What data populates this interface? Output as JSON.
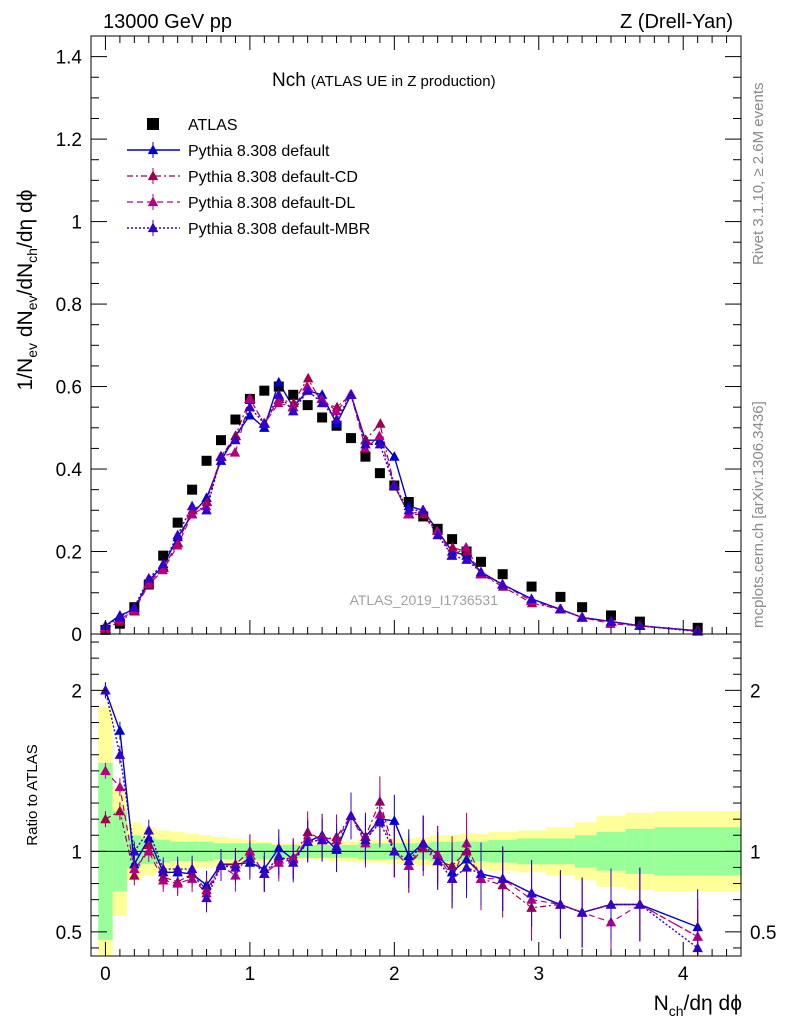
{
  "header": {
    "left": "13000 GeV pp",
    "right": "Z (Drell-Yan)"
  },
  "side": {
    "rivet": "Rivet 3.1.10, ≥ 2.6M events",
    "mcplots": "mcplots.cern.ch [arXiv:1306.3436]"
  },
  "watermark": "ATLAS_2019_I1736531",
  "colors": {
    "data": "#000000",
    "default": "#0000cc",
    "cd": "#a0004b",
    "dl": "#b40080",
    "mbr": "#3300cc",
    "band_inner": "#99ff99",
    "band_outer": "#ffff99"
  },
  "chart_data": {
    "type": "line",
    "title": "Nch",
    "subtitle": "(ATLAS UE in Z production)",
    "ylabel_main": "1/N_ev dN_ev/dN_ch/dη dφ",
    "ylabel_ratio": "Ratio to ATLAS",
    "xlabel": "N_ch/dη dφ",
    "xlim": [
      -0.1,
      4.4
    ],
    "ylim_main": [
      0,
      1.45
    ],
    "ylim_ratio": [
      0.35,
      2.35
    ],
    "xticks": [
      0,
      1,
      2,
      3,
      4
    ],
    "yticks_main": [
      0,
      0.2,
      0.4,
      0.6,
      0.8,
      1,
      1.2,
      1.4
    ],
    "ytick_labels_main": [
      "0",
      "0.2",
      "0.4",
      "0.6",
      "0.8",
      "1",
      "1.2",
      "1.4"
    ],
    "yticks_ratio": [
      0.5,
      1,
      2
    ],
    "ytick_labels_ratio": [
      "0.5",
      "1",
      "2"
    ],
    "legend_position": "top-left",
    "x": [
      0.0,
      0.1,
      0.2,
      0.3,
      0.4,
      0.5,
      0.6,
      0.7,
      0.8,
      0.9,
      1.0,
      1.1,
      1.2,
      1.3,
      1.4,
      1.5,
      1.6,
      1.7,
      1.8,
      1.9,
      2.0,
      2.1,
      2.2,
      2.3,
      2.4,
      2.5,
      2.6,
      2.75,
      2.95,
      3.15,
      3.3,
      3.5,
      3.7,
      4.1
    ],
    "series": [
      {
        "name": "ATLAS",
        "key": "data",
        "values": [
          0.01,
          0.025,
          0.065,
          0.12,
          0.19,
          0.27,
          0.35,
          0.42,
          0.47,
          0.52,
          0.57,
          0.59,
          0.6,
          0.58,
          0.555,
          0.525,
          0.505,
          0.475,
          0.43,
          0.39,
          0.36,
          0.32,
          0.285,
          0.255,
          0.23,
          0.2,
          0.175,
          0.145,
          0.115,
          0.09,
          0.065,
          0.045,
          0.03,
          0.015
        ]
      },
      {
        "name": "Pythia 8.308 default",
        "key": "default",
        "values": [
          0.02,
          0.045,
          0.06,
          0.13,
          0.165,
          0.235,
          0.29,
          0.33,
          0.42,
          0.48,
          0.53,
          0.5,
          0.61,
          0.55,
          0.59,
          0.58,
          0.51,
          0.58,
          0.47,
          0.47,
          0.43,
          0.31,
          0.3,
          0.25,
          0.2,
          0.19,
          0.15,
          0.12,
          0.085,
          0.06,
          0.04,
          0.03,
          0.02,
          0.008
        ]
      },
      {
        "name": "Pythia 8.308 default-CD",
        "key": "cd",
        "values": [
          0.012,
          0.03,
          0.055,
          0.125,
          0.16,
          0.22,
          0.3,
          0.32,
          0.43,
          0.48,
          0.57,
          0.51,
          0.57,
          0.56,
          0.62,
          0.56,
          0.55,
          0.58,
          0.47,
          0.51,
          0.36,
          0.29,
          0.29,
          0.24,
          0.21,
          0.2,
          0.145,
          0.115,
          0.075,
          0.06,
          0.04,
          0.03,
          0.02,
          0.007
        ]
      },
      {
        "name": "Pythia 8.308 default-DL",
        "key": "dl",
        "values": [
          0.015,
          0.035,
          0.058,
          0.12,
          0.155,
          0.215,
          0.29,
          0.31,
          0.43,
          0.44,
          0.57,
          0.51,
          0.56,
          0.55,
          0.6,
          0.57,
          0.54,
          0.58,
          0.45,
          0.48,
          0.36,
          0.29,
          0.3,
          0.25,
          0.19,
          0.21,
          0.145,
          0.12,
          0.08,
          0.06,
          0.04,
          0.025,
          0.02,
          0.007
        ]
      },
      {
        "name": "Pythia 8.308 default-MBR",
        "key": "mbr",
        "values": [
          0.02,
          0.04,
          0.065,
          0.135,
          0.17,
          0.24,
          0.31,
          0.3,
          0.43,
          0.47,
          0.55,
          0.51,
          0.58,
          0.54,
          0.59,
          0.56,
          0.52,
          0.58,
          0.46,
          0.46,
          0.36,
          0.3,
          0.3,
          0.24,
          0.19,
          0.18,
          0.15,
          0.12,
          0.085,
          0.06,
          0.04,
          0.03,
          0.02,
          0.006
        ]
      }
    ],
    "ratio_series": [
      {
        "key": "default",
        "values": [
          2.0,
          1.75,
          0.92,
          1.08,
          0.87,
          0.87,
          0.86,
          0.79,
          0.92,
          0.92,
          0.93,
          0.89,
          1.02,
          0.95,
          1.06,
          1.1,
          1.01,
          1.22,
          1.09,
          1.2,
          1.19,
          0.97,
          1.05,
          0.98,
          0.87,
          0.95,
          0.86,
          0.83,
          0.74,
          0.67,
          0.62,
          0.67,
          0.67,
          0.53
        ]
      },
      {
        "key": "cd",
        "values": [
          1.2,
          1.25,
          0.85,
          1.04,
          0.84,
          0.81,
          0.86,
          0.76,
          0.91,
          0.92,
          1.0,
          0.86,
          0.95,
          0.96,
          1.12,
          1.07,
          1.09,
          1.22,
          1.09,
          1.31,
          1.0,
          0.91,
          1.02,
          0.94,
          0.91,
          1.0,
          0.83,
          0.79,
          0.65,
          0.67,
          0.62,
          0.67,
          0.67,
          0.47
        ]
      },
      {
        "key": "dl",
        "values": [
          1.5,
          1.4,
          0.89,
          1.0,
          0.82,
          0.8,
          0.83,
          0.74,
          0.91,
          0.85,
          1.0,
          0.86,
          0.93,
          0.95,
          1.08,
          1.09,
          1.07,
          1.22,
          1.05,
          1.23,
          1.0,
          0.91,
          1.05,
          0.98,
          0.83,
          1.05,
          0.83,
          0.83,
          0.7,
          0.67,
          0.62,
          0.56,
          0.67,
          0.47
        ]
      },
      {
        "key": "mbr",
        "values": [
          2.0,
          1.6,
          1.0,
          1.13,
          0.89,
          0.89,
          0.89,
          0.71,
          0.91,
          0.9,
          0.96,
          0.86,
          0.97,
          0.93,
          1.06,
          1.07,
          1.03,
          1.22,
          1.07,
          1.18,
          1.0,
          0.94,
          1.05,
          0.94,
          0.83,
          0.9,
          0.86,
          0.83,
          0.74,
          0.67,
          0.62,
          0.67,
          0.67,
          0.4
        ]
      }
    ],
    "band": {
      "x_edges": [
        -0.05,
        0.05,
        0.15,
        0.25,
        0.35,
        0.45,
        0.55,
        0.65,
        0.75,
        0.85,
        0.95,
        1.05,
        1.15,
        1.25,
        1.35,
        1.45,
        1.55,
        1.65,
        1.75,
        1.85,
        1.95,
        2.05,
        2.15,
        2.25,
        2.35,
        2.45,
        2.55,
        2.65,
        2.85,
        3.05,
        3.25,
        3.4,
        3.6,
        3.8,
        4.4
      ],
      "inner": [
        0.55,
        0.25,
        0.1,
        0.08,
        0.07,
        0.06,
        0.06,
        0.06,
        0.05,
        0.05,
        0.05,
        0.05,
        0.04,
        0.04,
        0.04,
        0.04,
        0.04,
        0.04,
        0.05,
        0.05,
        0.05,
        0.05,
        0.05,
        0.06,
        0.06,
        0.06,
        0.06,
        0.07,
        0.08,
        0.08,
        0.1,
        0.12,
        0.14,
        0.15
      ],
      "outer": [
        0.9,
        0.4,
        0.18,
        0.15,
        0.13,
        0.12,
        0.11,
        0.1,
        0.09,
        0.08,
        0.07,
        0.06,
        0.05,
        0.05,
        0.05,
        0.05,
        0.06,
        0.06,
        0.07,
        0.07,
        0.08,
        0.08,
        0.09,
        0.1,
        0.1,
        0.11,
        0.11,
        0.12,
        0.13,
        0.15,
        0.18,
        0.22,
        0.24,
        0.25
      ]
    }
  }
}
